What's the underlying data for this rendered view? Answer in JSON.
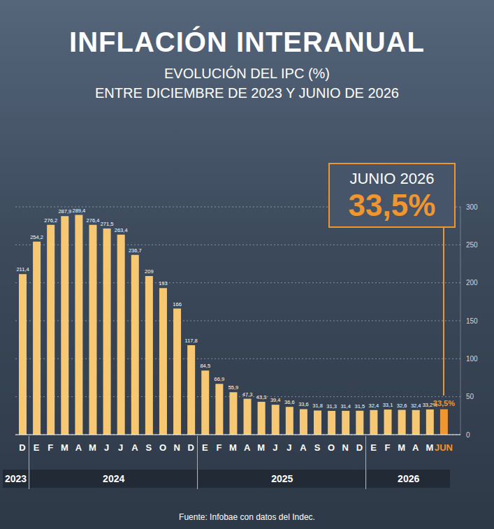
{
  "chart_data": {
    "type": "bar",
    "title": "INFLACIÓN INTERANUAL",
    "subtitle": [
      "EVOLUCIÓN DEL IPC (%)",
      "ENTRE DICIEMBRE DE 2023 Y JUNIO DE 2026"
    ],
    "categories": [
      "D",
      "E",
      "F",
      "M",
      "A",
      "M",
      "J",
      "J",
      "A",
      "S",
      "O",
      "N",
      "D",
      "E",
      "F",
      "M",
      "A",
      "M",
      "J",
      "J",
      "A",
      "S",
      "O",
      "N",
      "D",
      "E",
      "F",
      "M",
      "A",
      "M",
      "JUN"
    ],
    "years": [
      "2023",
      "2024",
      "2024",
      "2024",
      "2024",
      "2024",
      "2024",
      "2024",
      "2024",
      "2024",
      "2024",
      "2024",
      "2024",
      "2025",
      "2025",
      "2025",
      "2025",
      "2025",
      "2025",
      "2025",
      "2025",
      "2025",
      "2025",
      "2025",
      "2025",
      "2026",
      "2026",
      "2026",
      "2026",
      "2026",
      "2026"
    ],
    "values": [
      211.4,
      254.2,
      276.2,
      287.9,
      289.4,
      276.4,
      271.5,
      263.4,
      236.7,
      209,
      193,
      166,
      117.8,
      84.5,
      66.9,
      55.9,
      47.3,
      43.3,
      39.4,
      36.6,
      33.6,
      31.8,
      31.3,
      31.4,
      31.5,
      32.4,
      33.1,
      32.6,
      32.4,
      33.2,
      33.5
    ],
    "value_labels": [
      "211,4",
      "254,2",
      "276,2",
      "287,9",
      "289,4",
      "276,4",
      "271,5",
      "263,4",
      "236,7",
      "209",
      "193",
      "166",
      "117,8",
      "84,5",
      "66,9",
      "55,9",
      "47,3",
      "43,3",
      "39,4",
      "36,6",
      "33,6",
      "31,8",
      "31,3",
      "31,4",
      "31,5",
      "32,4",
      "33,1",
      "32,6",
      "32,4",
      "33,2%",
      "33,5%"
    ],
    "color": "#f7c873",
    "colors": [
      "#f7c873",
      "#f7c873",
      "#f7c873",
      "#f7c873",
      "#f7c873",
      "#f7c873",
      "#f7c873",
      "#f7c873",
      "#f7c873",
      "#f7c873",
      "#f7c873",
      "#f7c873",
      "#f7c873",
      "#f7c873",
      "#f7c873",
      "#f7c873",
      "#f7c873",
      "#f7c873",
      "#f7c873",
      "#f7c873",
      "#f7c873",
      "#f7c873",
      "#f7c873",
      "#f7c873",
      "#f7c873",
      "#f7c873",
      "#f7c873",
      "#f7c873",
      "#f7c873",
      "#f7c873",
      "#f0962e"
    ],
    "ylim": [
      0,
      300
    ],
    "yticks": [
      0,
      50,
      100,
      150,
      200,
      250,
      300
    ],
    "grid": true,
    "data_labels": true,
    "annotation": {
      "title": "JUNIO 2026",
      "text": "33,5%"
    },
    "source": "Fuente: Infobae con datos del Indec."
  }
}
